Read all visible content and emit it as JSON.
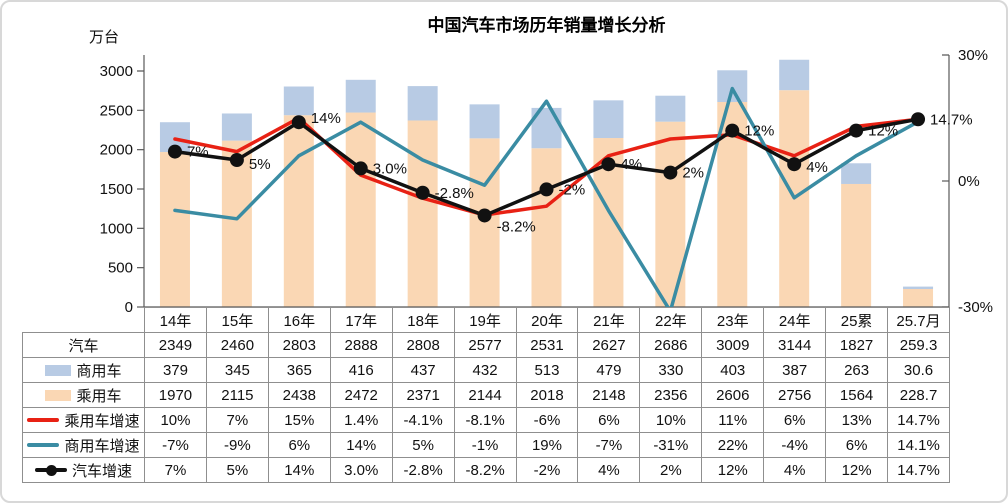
{
  "title": "中国汽车市场历年销量增长分析",
  "left_axis": {
    "unit": "万台",
    "ticks": [
      {
        "label": "3000",
        "value": 3000
      },
      {
        "label": "2500",
        "value": 2500
      },
      {
        "label": "2000",
        "value": 2000
      },
      {
        "label": "1500",
        "value": 1500
      },
      {
        "label": "1000",
        "value": 1000
      },
      {
        "label": "500",
        "value": 500
      },
      {
        "label": "0",
        "value": 0
      }
    ],
    "range": [
      0,
      3000
    ]
  },
  "right_axis": {
    "ticks": [
      {
        "label": "30%",
        "value": 30
      },
      {
        "label": "0%",
        "value": 0
      },
      {
        "label": "-30%",
        "value": -30
      }
    ],
    "range": [
      -30,
      30
    ]
  },
  "chart_data": {
    "type": "combo-stacked-bar-line",
    "categories": [
      "14年",
      "15年",
      "16年",
      "17年",
      "18年",
      "19年",
      "20年",
      "21年",
      "22年",
      "23年",
      "24年",
      "25累",
      "25.7月"
    ],
    "bar_series": [
      {
        "id": "passenger",
        "name": "乘用车",
        "color": "#fad7b4",
        "values": [
          1970,
          2115,
          2438,
          2472,
          2371,
          2144,
          2018,
          2148,
          2356,
          2606,
          2756,
          1564,
          228.7
        ]
      },
      {
        "id": "commercial",
        "name": "商用车",
        "color": "#b8cbe4",
        "values": [
          379,
          345,
          365,
          416,
          437,
          432,
          513,
          479,
          330,
          403,
          387,
          263,
          30.6
        ]
      }
    ],
    "line_series": [
      {
        "id": "passenger-growth",
        "name": "乘用车增速",
        "color": "#e82114",
        "marker": false,
        "values": [
          10,
          7,
          15,
          1.4,
          -4.1,
          -8.1,
          -6,
          6,
          10,
          11,
          6,
          13,
          14.7
        ]
      },
      {
        "id": "commercial-growth",
        "name": "商用车增速",
        "color": "#3a8ca3",
        "marker": false,
        "values": [
          -7,
          -9,
          6,
          14,
          5,
          -1,
          19,
          -7,
          -31,
          22,
          -4,
          6,
          14.1
        ]
      },
      {
        "id": "auto-growth",
        "name": "汽车增速",
        "color": "#111111",
        "marker": true,
        "values": [
          7,
          5,
          14,
          3.0,
          -2.8,
          -8.2,
          -2,
          4,
          2,
          12,
          4,
          12,
          14.7
        ],
        "point_labels": [
          "7%",
          "5%",
          "14%",
          "3.0%",
          "-2.8%",
          "-8.2%",
          "-2%",
          "4%",
          "2%",
          "12%",
          "4%",
          "12%",
          "14.7%"
        ]
      }
    ],
    "ylim_left": [
      0,
      3000
    ],
    "ylim_right": [
      -30,
      30
    ],
    "grid": false,
    "legend_position": "table-left-column"
  },
  "table": {
    "rows": [
      {
        "label": "汽车",
        "swatch": null,
        "values": [
          "2349",
          "2460",
          "2803",
          "2888",
          "2808",
          "2577",
          "2531",
          "2627",
          "2686",
          "3009",
          "3144",
          "1827",
          "259.3"
        ]
      },
      {
        "label": "商用车",
        "swatch": "bar-commercial",
        "values": [
          "379",
          "345",
          "365",
          "416",
          "437",
          "432",
          "513",
          "479",
          "330",
          "403",
          "387",
          "263",
          "30.6"
        ]
      },
      {
        "label": "乘用车",
        "swatch": "bar-passenger",
        "values": [
          "1970",
          "2115",
          "2438",
          "2472",
          "2371",
          "2144",
          "2018",
          "2148",
          "2356",
          "2606",
          "2756",
          "1564",
          "228.7"
        ]
      },
      {
        "label": "乘用车增速",
        "swatch": "line-passenger",
        "values": [
          "10%",
          "7%",
          "15%",
          "1.4%",
          "-4.1%",
          "-8.1%",
          "-6%",
          "6%",
          "10%",
          "11%",
          "6%",
          "13%",
          "14.7%"
        ]
      },
      {
        "label": "商用车增速",
        "swatch": "line-commercial",
        "values": [
          "-7%",
          "-9%",
          "6%",
          "14%",
          "5%",
          "-1%",
          "19%",
          "-7%",
          "-31%",
          "22%",
          "-4%",
          "6%",
          "14.1%"
        ]
      },
      {
        "label": "汽车增速",
        "swatch": "line-auto-marker",
        "values": [
          "7%",
          "5%",
          "14%",
          "3.0%",
          "-2.8%",
          "-8.2%",
          "-2%",
          "4%",
          "2%",
          "12%",
          "4%",
          "12%",
          "14.7%"
        ]
      }
    ]
  }
}
